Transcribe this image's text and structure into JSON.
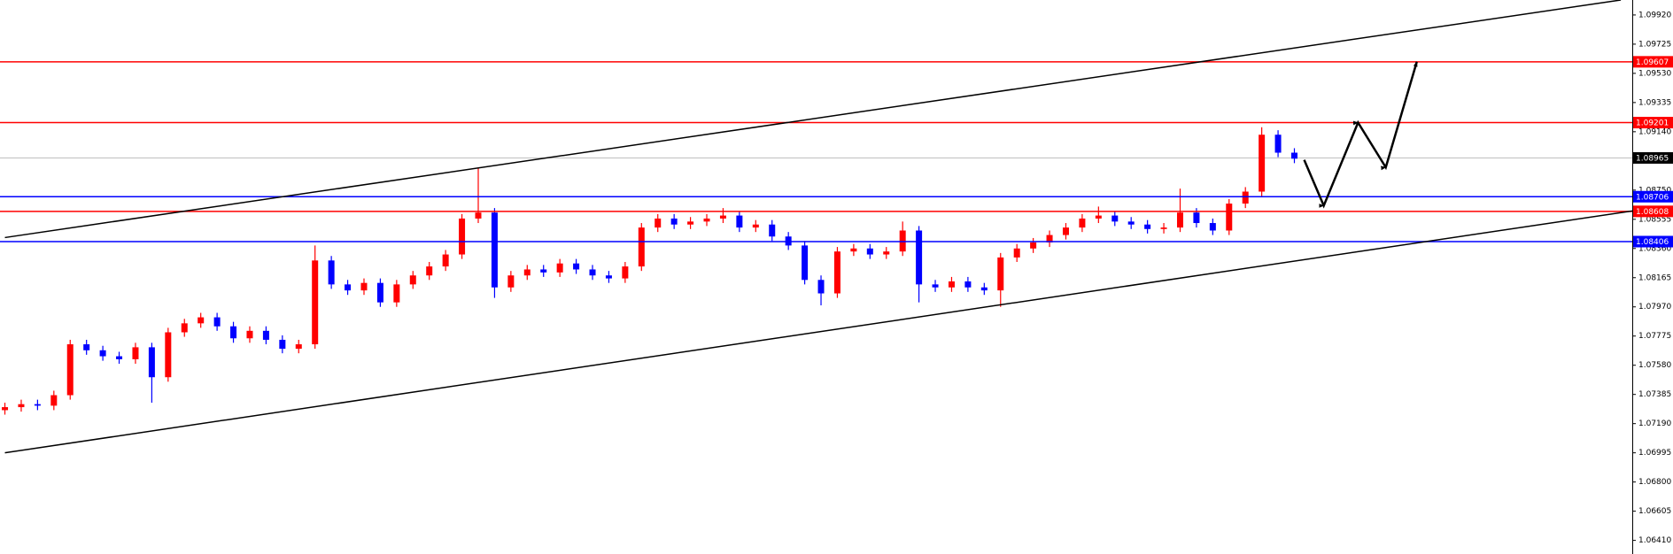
{
  "chart_data": {
    "type": "candlestick",
    "open": [
      1.0728,
      1.073,
      1.0732,
      1.0731,
      1.0738,
      1.0772,
      1.0768,
      1.0764,
      1.0762,
      1.077,
      1.075,
      1.078,
      1.0786,
      1.079,
      1.0784,
      1.0776,
      1.0781,
      1.0775,
      1.0769,
      1.0772,
      1.0828,
      1.0812,
      1.0808,
      1.0813,
      1.08,
      1.0812,
      1.0818,
      1.0824,
      1.0832,
      1.0856,
      1.086,
      1.081,
      1.0818,
      1.0822,
      1.082,
      1.0826,
      1.0822,
      1.0818,
      1.0816,
      1.0824,
      1.085,
      1.0856,
      1.0852,
      1.0854,
      1.0856,
      1.0858,
      1.085,
      1.0852,
      1.0844,
      1.0838,
      1.0815,
      1.0806,
      1.0834,
      1.0836,
      1.0832,
      1.0834,
      1.0848,
      1.0812,
      1.081,
      1.0814,
      1.081,
      1.0808,
      1.083,
      1.0836,
      1.084,
      1.0845,
      1.085,
      1.0856,
      1.0858,
      1.0854,
      1.0852,
      1.0849,
      1.085,
      1.086,
      1.0853,
      1.0848,
      1.0866,
      1.0874,
      1.0912,
      1.09
    ],
    "high": [
      1.0733,
      1.0735,
      1.0735,
      1.0741,
      1.0775,
      1.0775,
      1.0771,
      1.0767,
      1.0773,
      1.0773,
      1.0783,
      1.0789,
      1.0793,
      1.0793,
      1.0787,
      1.0784,
      1.0784,
      1.0778,
      1.0775,
      1.0838,
      1.0831,
      1.0815,
      1.0816,
      1.0816,
      1.0815,
      1.0821,
      1.0827,
      1.0835,
      1.0859,
      1.089,
      1.0863,
      1.0821,
      1.0825,
      1.0825,
      1.0829,
      1.0829,
      1.0825,
      1.0821,
      1.0827,
      1.0853,
      1.0859,
      1.0859,
      1.0857,
      1.0859,
      1.0863,
      1.0861,
      1.0855,
      1.0855,
      1.0847,
      1.0841,
      1.0818,
      1.0837,
      1.0839,
      1.0839,
      1.0837,
      1.0854,
      1.0851,
      1.0815,
      1.0817,
      1.0817,
      1.0813,
      1.0833,
      1.0839,
      1.0843,
      1.0848,
      1.0853,
      1.0859,
      1.0864,
      1.0861,
      1.0857,
      1.0855,
      1.0853,
      1.0876,
      1.0863,
      1.0856,
      1.0869,
      1.0877,
      1.0917,
      1.0915,
      1.0903
    ],
    "low": [
      1.0725,
      1.0727,
      1.0728,
      1.0728,
      1.0735,
      1.0765,
      1.0761,
      1.0759,
      1.0759,
      1.0733,
      1.0747,
      1.0777,
      1.0783,
      1.0781,
      1.0773,
      1.0773,
      1.0772,
      1.0766,
      1.0766,
      1.0769,
      1.0809,
      1.0805,
      1.0805,
      1.0797,
      1.0797,
      1.0809,
      1.0815,
      1.0821,
      1.0829,
      1.0853,
      1.0803,
      1.0807,
      1.0815,
      1.0817,
      1.0817,
      1.0819,
      1.0815,
      1.0813,
      1.0813,
      1.0821,
      1.0847,
      1.0849,
      1.0849,
      1.0851,
      1.0853,
      1.0847,
      1.0847,
      1.0841,
      1.0835,
      1.0812,
      1.0798,
      1.0803,
      1.0831,
      1.0829,
      1.0829,
      1.0831,
      1.08,
      1.0807,
      1.0807,
      1.0807,
      1.0805,
      1.0797,
      1.0827,
      1.0833,
      1.0837,
      1.0842,
      1.0847,
      1.0853,
      1.0851,
      1.0849,
      1.0846,
      1.0846,
      1.0847,
      1.085,
      1.0845,
      1.0845,
      1.0863,
      1.0871,
      1.0897,
      1.0893
    ],
    "close": [
      1.073,
      1.0732,
      1.0731,
      1.0738,
      1.0772,
      1.0768,
      1.0764,
      1.0762,
      1.077,
      1.075,
      1.078,
      1.0786,
      1.079,
      1.0784,
      1.0776,
      1.0781,
      1.0775,
      1.0769,
      1.0772,
      1.0828,
      1.0812,
      1.0808,
      1.0813,
      1.08,
      1.0812,
      1.0818,
      1.0824,
      1.0832,
      1.0856,
      1.086,
      1.081,
      1.0818,
      1.0822,
      1.082,
      1.0826,
      1.0822,
      1.0818,
      1.0816,
      1.0824,
      1.085,
      1.0856,
      1.0852,
      1.0854,
      1.0856,
      1.0858,
      1.085,
      1.0852,
      1.0844,
      1.0838,
      1.0815,
      1.0806,
      1.0834,
      1.0836,
      1.0832,
      1.0834,
      1.0848,
      1.0812,
      1.081,
      1.0814,
      1.081,
      1.0808,
      1.083,
      1.0836,
      1.084,
      1.0845,
      1.085,
      1.0856,
      1.0858,
      1.0854,
      1.0852,
      1.0849,
      1.085,
      1.086,
      1.0853,
      1.0848,
      1.0866,
      1.0874,
      1.0912,
      1.09,
      1.0896
    ],
    "up_color": "#ff0000",
    "down_color": "#0000ff",
    "xlim": [
      -0.3,
      99.7
    ],
    "ylim": [
      1.06319,
      1.1002
    ],
    "yticks": [
      {
        "value": 1.0992,
        "label": "1.09920"
      },
      1.09725,
      {
        "value": 1.0953,
        "label": "1.09530"
      },
      1.09335,
      {
        "value": 1.0914,
        "label": "1.09140"
      },
      {
        "value": 1.0875,
        "label": "1.08750"
      },
      1.08555,
      {
        "value": 1.0836,
        "label": "1.08360"
      },
      1.08165,
      {
        "value": 1.0797,
        "label": "1.07970"
      },
      1.07775,
      {
        "value": 1.0758,
        "label": "1.07580"
      },
      1.07385,
      {
        "value": 1.0719,
        "label": "1.07190"
      },
      1.06995,
      {
        "value": 1.068,
        "label": "1.06800"
      },
      1.06605,
      {
        "value": 1.0641,
        "label": "1.06410"
      }
    ],
    "levels": [
      {
        "value": 1.09607,
        "color": "#ff0000"
      },
      {
        "value": 1.09201,
        "color": "#ff0000"
      },
      {
        "value": 1.08706,
        "color": "#0000ff"
      },
      {
        "value": 1.08608,
        "color": "#ff0000"
      },
      {
        "value": 1.08406,
        "color": "#0000ff"
      }
    ],
    "current_price": {
      "value": 1.08965,
      "color": "#000000"
    },
    "trend_lines": [
      {
        "x": [
          0,
          99
        ],
        "y": [
          1.08433,
          1.1002
        ],
        "color": "#000000"
      },
      {
        "x": [
          0,
          99.7
        ],
        "y": [
          1.06995,
          1.08611
        ],
        "color": "#000000"
      }
    ],
    "projection": {
      "x": [
        79.6,
        80.8,
        82.9,
        84.6,
        86.5
      ],
      "y": [
        1.08952,
        1.08646,
        1.09201,
        1.08902,
        1.09607
      ],
      "color": "#000000"
    }
  }
}
